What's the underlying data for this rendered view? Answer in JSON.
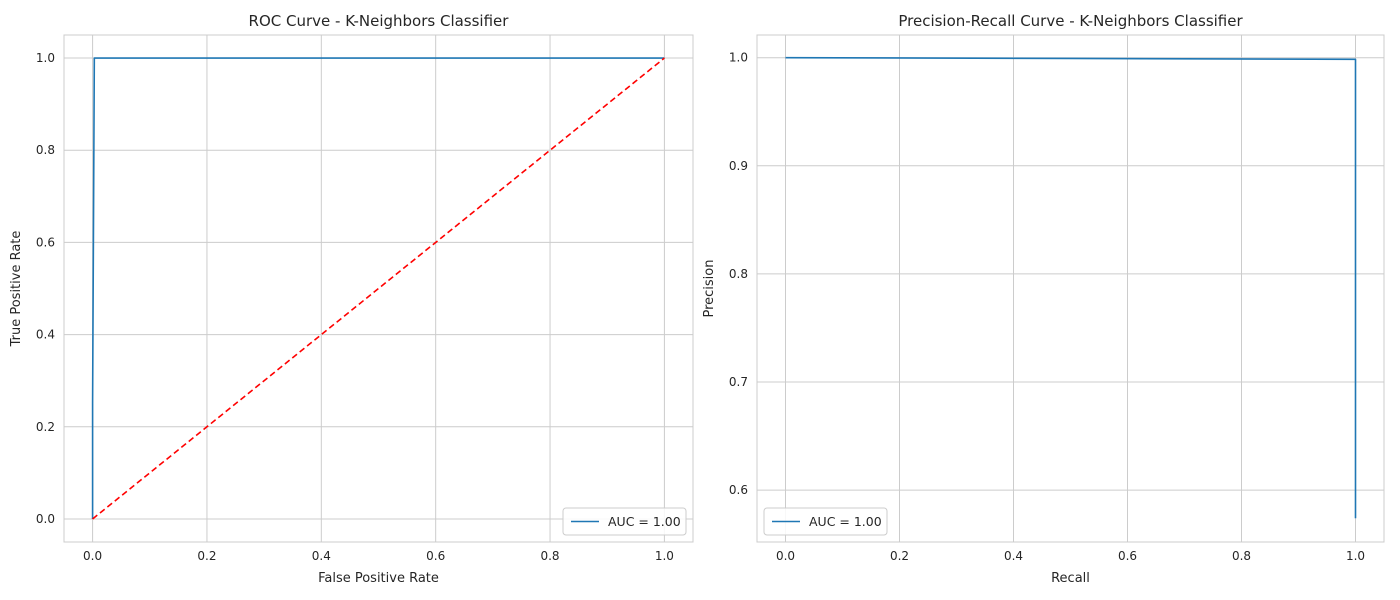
{
  "chart_data": [
    {
      "type": "line",
      "title": "ROC Curve - K-Neighbors Classifier",
      "xlabel": "False Positive Rate",
      "ylabel": "True Positive Rate",
      "xlim": [
        -0.05,
        1.05
      ],
      "ylim": [
        -0.05,
        1.05
      ],
      "xticks": [
        "0.0",
        "0.2",
        "0.4",
        "0.6",
        "0.8",
        "1.0"
      ],
      "yticks": [
        "0.0",
        "0.2",
        "0.4",
        "0.6",
        "0.8",
        "1.0"
      ],
      "grid": true,
      "legend_position": "lower-right",
      "series": [
        {
          "name": "AUC = 1.00",
          "color": "#1f77b4",
          "style": "solid",
          "points": [
            [
              0.0,
              0.0
            ],
            [
              0.0,
              0.25
            ],
            [
              0.003,
              0.997
            ],
            [
              0.003,
              1.0
            ],
            [
              1.0,
              1.0
            ]
          ]
        },
        {
          "color": "#ff0000",
          "style": "dashed",
          "points": [
            [
              0.0,
              0.0
            ],
            [
              1.0,
              1.0
            ]
          ]
        }
      ]
    },
    {
      "type": "line",
      "title": "Precision-Recall Curve - K-Neighbors Classifier",
      "xlabel": "Recall",
      "ylabel": "Precision",
      "xlim": [
        -0.05,
        1.05
      ],
      "ylim": [
        0.552,
        1.021
      ],
      "xticks": [
        "0.0",
        "0.2",
        "0.4",
        "0.6",
        "0.8",
        "1.0"
      ],
      "yticks": [
        "0.6",
        "0.7",
        "0.8",
        "0.9",
        "1.0"
      ],
      "grid": true,
      "legend_position": "lower-left",
      "series": [
        {
          "name": "AUC = 1.00",
          "color": "#1f77b4",
          "style": "solid",
          "points": [
            [
              0.0,
              1.0
            ],
            [
              0.5,
              0.9993
            ],
            [
              1.0,
              0.9985
            ],
            [
              1.0,
              0.574
            ]
          ]
        }
      ]
    }
  ]
}
